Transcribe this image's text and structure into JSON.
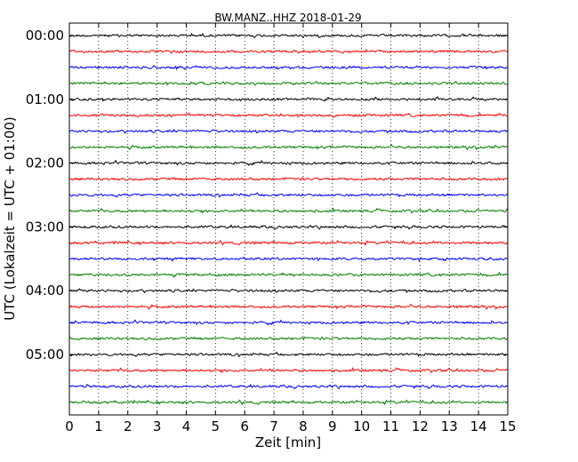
{
  "chart_data": {
    "type": "line",
    "title": "BW.MANZ..HHZ 2018-01-29",
    "xlabel": "Zeit  [min]",
    "ylabel": "UTC (Lokalzeit = UTC + 01:00)",
    "xlim": [
      0,
      15
    ],
    "x_ticks": [
      0,
      1,
      2,
      3,
      4,
      5,
      6,
      7,
      8,
      9,
      10,
      11,
      12,
      13,
      14,
      15
    ],
    "x_tick_labels": [
      "0",
      "1",
      "2",
      "3",
      "4",
      "5",
      "6",
      "7",
      "8",
      "9",
      "10",
      "11",
      "12",
      "13",
      "14",
      "15"
    ],
    "grid": "vertical-dotted",
    "y_tick_labels": [
      {
        "row": 0,
        "label": "00:00"
      },
      {
        "row": 4,
        "label": "01:00"
      },
      {
        "row": 8,
        "label": "02:00"
      },
      {
        "row": 12,
        "label": "03:00"
      },
      {
        "row": 16,
        "label": "04:00"
      },
      {
        "row": 20,
        "label": "05:00"
      }
    ],
    "row_interval_minutes": 15,
    "row_count": 24,
    "trace_colors": [
      "#000000",
      "#ff0000",
      "#0000ff",
      "#008000"
    ]
  }
}
